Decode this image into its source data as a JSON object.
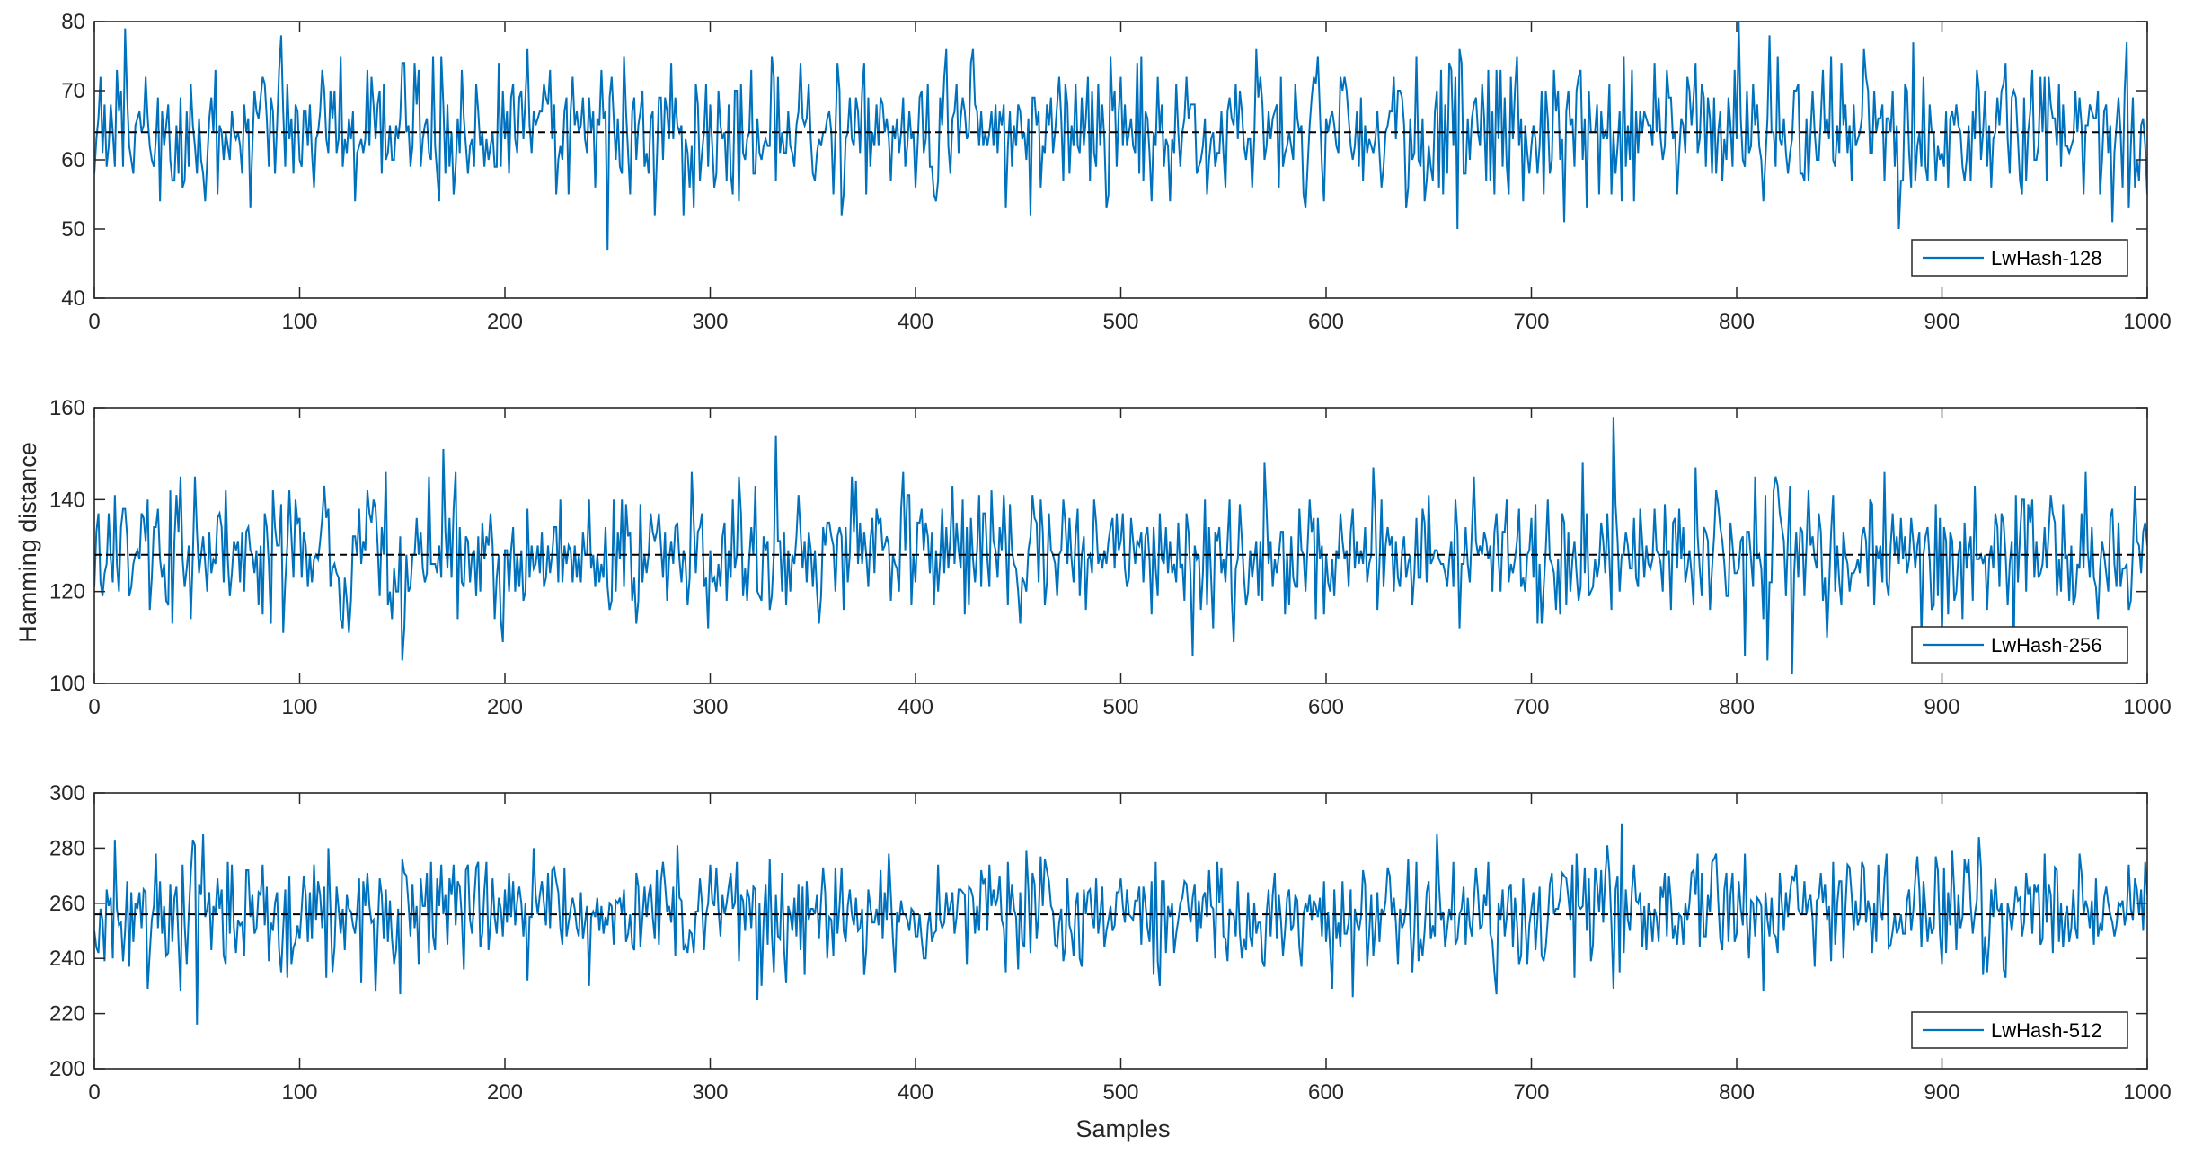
{
  "chart_data": {
    "type": "line",
    "xlabel": "Samples",
    "ylabel": "Hamming distance",
    "colors": {
      "series": "#0072BD",
      "reference": "#000000",
      "axes": "#262626"
    },
    "grid": false,
    "legend_position": "bottom-right",
    "x_range": [
      0,
      1000
    ],
    "x_ticks": [
      0,
      100,
      200,
      300,
      400,
      500,
      600,
      700,
      800,
      900,
      1000
    ],
    "panels": [
      {
        "legend": "LwHash-128",
        "ylim": [
          40,
          80
        ],
        "y_ticks": [
          40,
          50,
          60,
          70,
          80
        ],
        "reference": 64,
        "seed": 128,
        "sd": 5.6
      },
      {
        "legend": "LwHash-256",
        "ylim": [
          100,
          160
        ],
        "y_ticks": [
          100,
          120,
          140,
          160
        ],
        "reference": 128,
        "seed": 256,
        "sd": 8.0
      },
      {
        "legend": "LwHash-512",
        "ylim": [
          200,
          300
        ],
        "y_ticks": [
          200,
          220,
          240,
          260,
          280,
          300
        ],
        "reference": 256,
        "seed": 512,
        "sd": 11.3
      }
    ]
  }
}
